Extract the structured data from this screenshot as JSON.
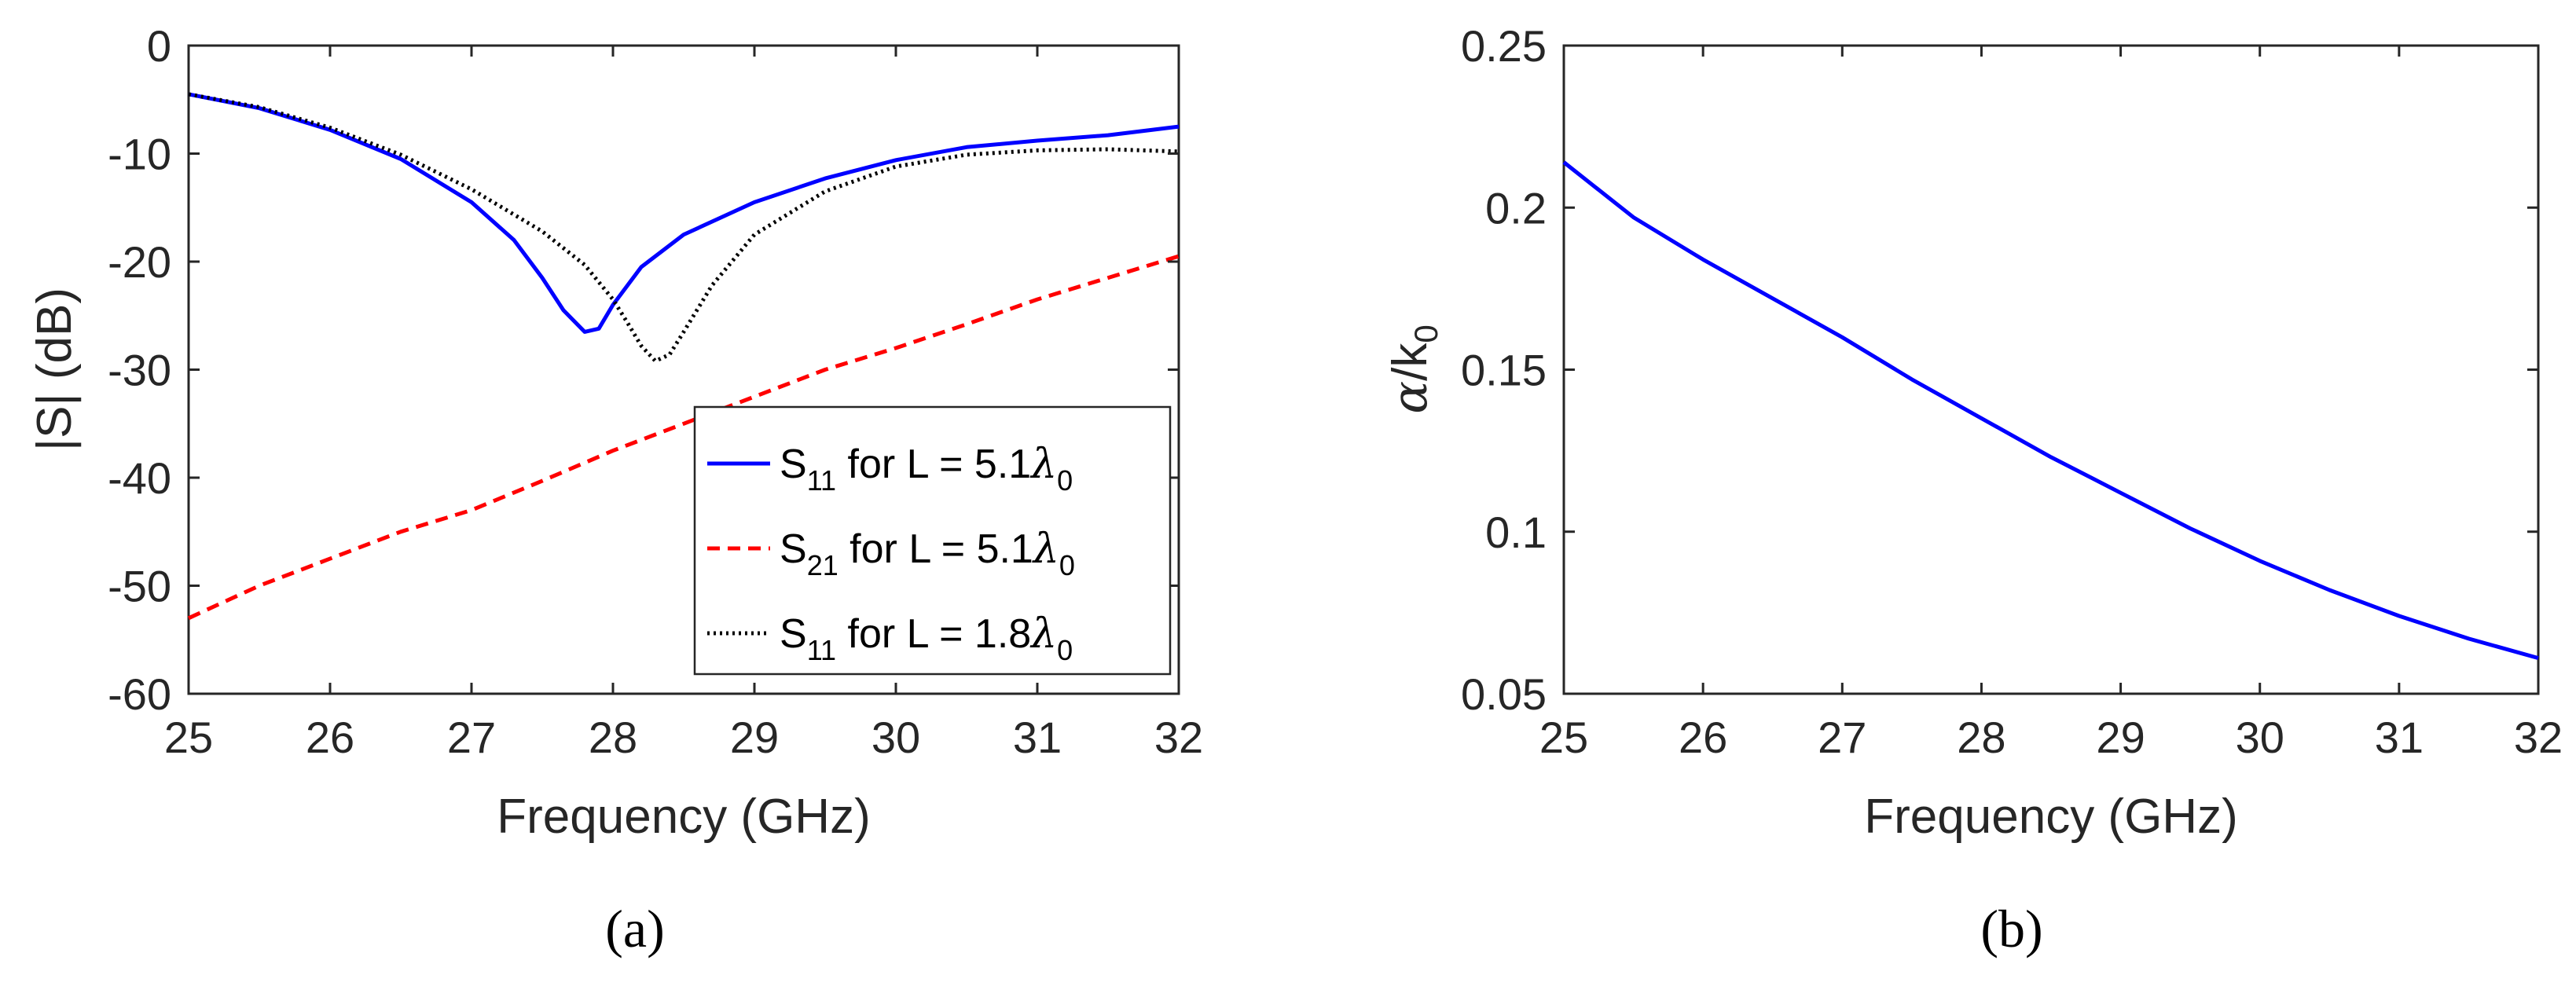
{
  "chart_data": [
    {
      "type": "line",
      "panel_label": "(a)",
      "xlabel": "Frequency (GHz)",
      "ylabel": "|S| (dB)",
      "xlim": [
        25,
        32
      ],
      "ylim": [
        -60,
        0
      ],
      "xticks": [
        "25",
        "26",
        "27",
        "28",
        "29",
        "30",
        "31",
        "32"
      ],
      "yticks": [
        "-60",
        "-50",
        "-40",
        "-30",
        "-20",
        "-10",
        "0"
      ],
      "grid": false,
      "legend_position": "bottom-right",
      "series": [
        {
          "name": "S11 for L = 5.1λ0",
          "legend": {
            "base": "S",
            "sub": "11",
            "mid": " for L = 5.1",
            "lambda": "λ",
            "lsub": "0"
          },
          "color": "#0000ff",
          "style": "solid",
          "x": [
            25,
            25.5,
            26,
            26.5,
            27,
            27.3,
            27.5,
            27.65,
            27.8,
            27.9,
            28,
            28.2,
            28.5,
            29,
            29.5,
            30,
            30.5,
            31,
            31.5,
            32
          ],
          "y": [
            -4.5,
            -5.8,
            -7.8,
            -10.5,
            -14.5,
            -18,
            -21.5,
            -24.5,
            -26.5,
            -26.2,
            -24,
            -20.5,
            -17.5,
            -14.5,
            -12.3,
            -10.6,
            -9.4,
            -8.8,
            -8.3,
            -7.5
          ]
        },
        {
          "name": "S21 for L = 5.1λ0",
          "legend": {
            "base": "S",
            "sub": "21",
            "mid": " for L = 5.1",
            "lambda": "λ",
            "lsub": "0"
          },
          "color": "#ff0000",
          "style": "dashed",
          "x": [
            25,
            25.5,
            26,
            26.5,
            27,
            27.5,
            28,
            28.5,
            29,
            29.5,
            30,
            30.5,
            31,
            31.5,
            32
          ],
          "y": [
            -53,
            -50,
            -47.5,
            -45,
            -43,
            -40.3,
            -37.5,
            -35,
            -32.5,
            -30,
            -28,
            -25.8,
            -23.5,
            -21.5,
            -19.5
          ]
        },
        {
          "name": "S11 for L = 1.8λ0",
          "legend": {
            "base": "S",
            "sub": "11",
            "mid": " for L = 1.8",
            "lambda": "λ",
            "lsub": "0"
          },
          "color": "#000000",
          "style": "dotted",
          "x": [
            25,
            25.5,
            26,
            26.5,
            27,
            27.5,
            27.8,
            28,
            28.1,
            28.2,
            28.3,
            28.4,
            28.5,
            28.7,
            29,
            29.5,
            30,
            30.5,
            31,
            31.5,
            32
          ],
          "y": [
            -4.5,
            -5.7,
            -7.6,
            -10.1,
            -13.3,
            -17.2,
            -20.3,
            -23.5,
            -25.6,
            -27.8,
            -29.2,
            -28.6,
            -26.5,
            -22.2,
            -17.5,
            -13.5,
            -11.2,
            -10.1,
            -9.7,
            -9.6,
            -9.8
          ]
        }
      ]
    },
    {
      "type": "line",
      "panel_label": "(b)",
      "xlabel": "Frequency (GHz)",
      "ylabel": "α/k0",
      "ylabel_parts": {
        "alpha": "α",
        "rest": "/k",
        "sub": "0"
      },
      "xlim": [
        25,
        32
      ],
      "ylim": [
        0.05,
        0.25
      ],
      "xticks": [
        "25",
        "26",
        "27",
        "28",
        "29",
        "30",
        "31",
        "32"
      ],
      "yticks": [
        "0.05",
        "0.1",
        "0.15",
        "0.2",
        "0.25"
      ],
      "grid": false,
      "series": [
        {
          "name": "α/k0",
          "color": "#0000ff",
          "style": "solid",
          "x": [
            25,
            25.5,
            26,
            26.5,
            27,
            27.5,
            28,
            28.5,
            29,
            29.5,
            30,
            30.5,
            31,
            31.5,
            32
          ],
          "y": [
            0.214,
            0.197,
            0.184,
            0.172,
            0.16,
            0.147,
            0.135,
            0.123,
            0.112,
            0.101,
            0.091,
            0.082,
            0.074,
            0.067,
            0.061
          ]
        }
      ]
    }
  ]
}
